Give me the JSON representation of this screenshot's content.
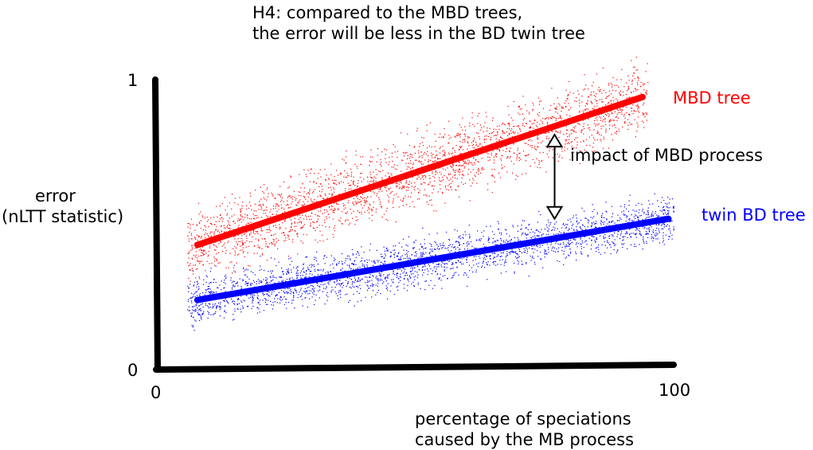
{
  "chart_data": {
    "type": "scatter",
    "title_lines": [
      "H4: compared to the MBD trees,",
      "the error will be less in the BD twin tree"
    ],
    "xlabel_lines": [
      "percentage of speciations",
      "caused by the MB process"
    ],
    "ylabel_lines": [
      "error",
      "(nLTT statistic)"
    ],
    "xlim": [
      0,
      100
    ],
    "ylim": [
      0,
      1
    ],
    "x_ticks": [
      "0",
      "100"
    ],
    "y_ticks": [
      "0",
      "1"
    ],
    "grid": false,
    "legend": "inline labels at right end of lines",
    "series": [
      {
        "name": "MBD tree",
        "color": "#ff0000",
        "trend": {
          "x": [
            8,
            94
          ],
          "y": [
            0.43,
            0.94
          ]
        }
      },
      {
        "name": "twin BD tree",
        "color": "#0000ff",
        "trend": {
          "x": [
            8,
            99
          ],
          "y": [
            0.24,
            0.52
          ]
        }
      }
    ],
    "annotations": [
      {
        "text": "impact of MBD process",
        "type": "double-arrow",
        "x": 77,
        "y_from": 0.52,
        "y_to": 0.81
      }
    ]
  },
  "colors": {
    "axis": "#000000",
    "mbd": "#ff0000",
    "twin": "#0000ff"
  }
}
